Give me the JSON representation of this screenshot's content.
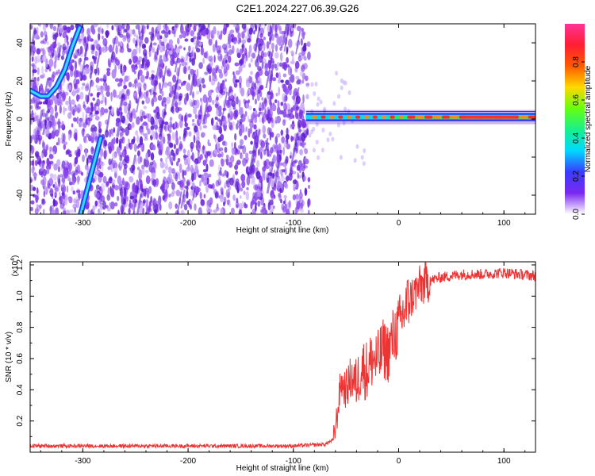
{
  "title": "C2E1.2024.227.06.39.G26",
  "chart_data": [
    {
      "type": "heatmap",
      "name": "spectrogram",
      "xlabel": "Height of straight line (km)",
      "ylabel": "Frequency (Hz)",
      "xlim": [
        -350,
        130
      ],
      "ylim": [
        -50,
        50
      ],
      "x_ticks": [
        -300,
        -200,
        -100,
        0,
        100
      ],
      "y_ticks": [
        -40,
        -20,
        0,
        20,
        40
      ],
      "noise_region_end_km": -85,
      "carrier_line": {
        "x_start": -88,
        "x_end": 130,
        "freq": 1
      },
      "fading_line_1": {
        "points": [
          [
            -350,
            15
          ],
          [
            -340,
            12
          ],
          [
            -333,
            12
          ],
          [
            -325,
            17
          ],
          [
            -317,
            26
          ],
          [
            -310,
            38
          ],
          [
            -303,
            48
          ]
        ]
      },
      "fading_line_2": {
        "points": [
          [
            -302,
            -50
          ],
          [
            -283,
            -10
          ]
        ]
      },
      "colorbar": {
        "label": "Normalized spectral amplitude",
        "range": [
          0,
          1
        ],
        "ticks": [
          "0.0",
          "0.2",
          "0.4",
          "0.6",
          "0.8"
        ],
        "tick_values": [
          0,
          0.2,
          0.4,
          0.6,
          0.8
        ],
        "colors": [
          "#ffffff",
          "#7a28f0",
          "#3a3cff",
          "#00d8ff",
          "#19f08c",
          "#66ff10",
          "#ffd800",
          "#ff5a00",
          "#ff1e32",
          "#ff3296"
        ]
      }
    },
    {
      "type": "line",
      "name": "snr",
      "xlabel": "Height of straight line (km)",
      "ylabel": "SNR (10 * v/v)",
      "exponent_label": "(x10",
      "exponent_value": "4",
      "exponent_close": ")",
      "xlim": [
        -350,
        130
      ],
      "ylim": [
        0,
        1.22
      ],
      "x_ticks": [
        -300,
        -200,
        -100,
        0,
        100
      ],
      "y_ticks": [
        0.2,
        0.4,
        0.6,
        0.8,
        1.0,
        1.2
      ],
      "y_tick_labels": [
        "0.2",
        "0.4",
        "0.6",
        "0.8",
        "1.0",
        "1.2"
      ],
      "series_color": "#ee3333",
      "x": [
        -350,
        -300,
        -200,
        -100,
        -70,
        -62,
        -58,
        -55,
        -50,
        -45,
        -40,
        -35,
        -30,
        -25,
        -20,
        -15,
        -10,
        -5,
        0,
        5,
        10,
        15,
        20,
        30,
        40,
        60,
        80,
        100,
        130
      ],
      "values": [
        0.04,
        0.04,
        0.04,
        0.04,
        0.05,
        0.08,
        0.25,
        0.45,
        0.4,
        0.48,
        0.44,
        0.55,
        0.52,
        0.6,
        0.58,
        0.66,
        0.64,
        0.74,
        0.8,
        0.9,
        0.97,
        1.02,
        1.06,
        1.1,
        1.12,
        1.14,
        1.14,
        1.15,
        1.13
      ]
    }
  ]
}
